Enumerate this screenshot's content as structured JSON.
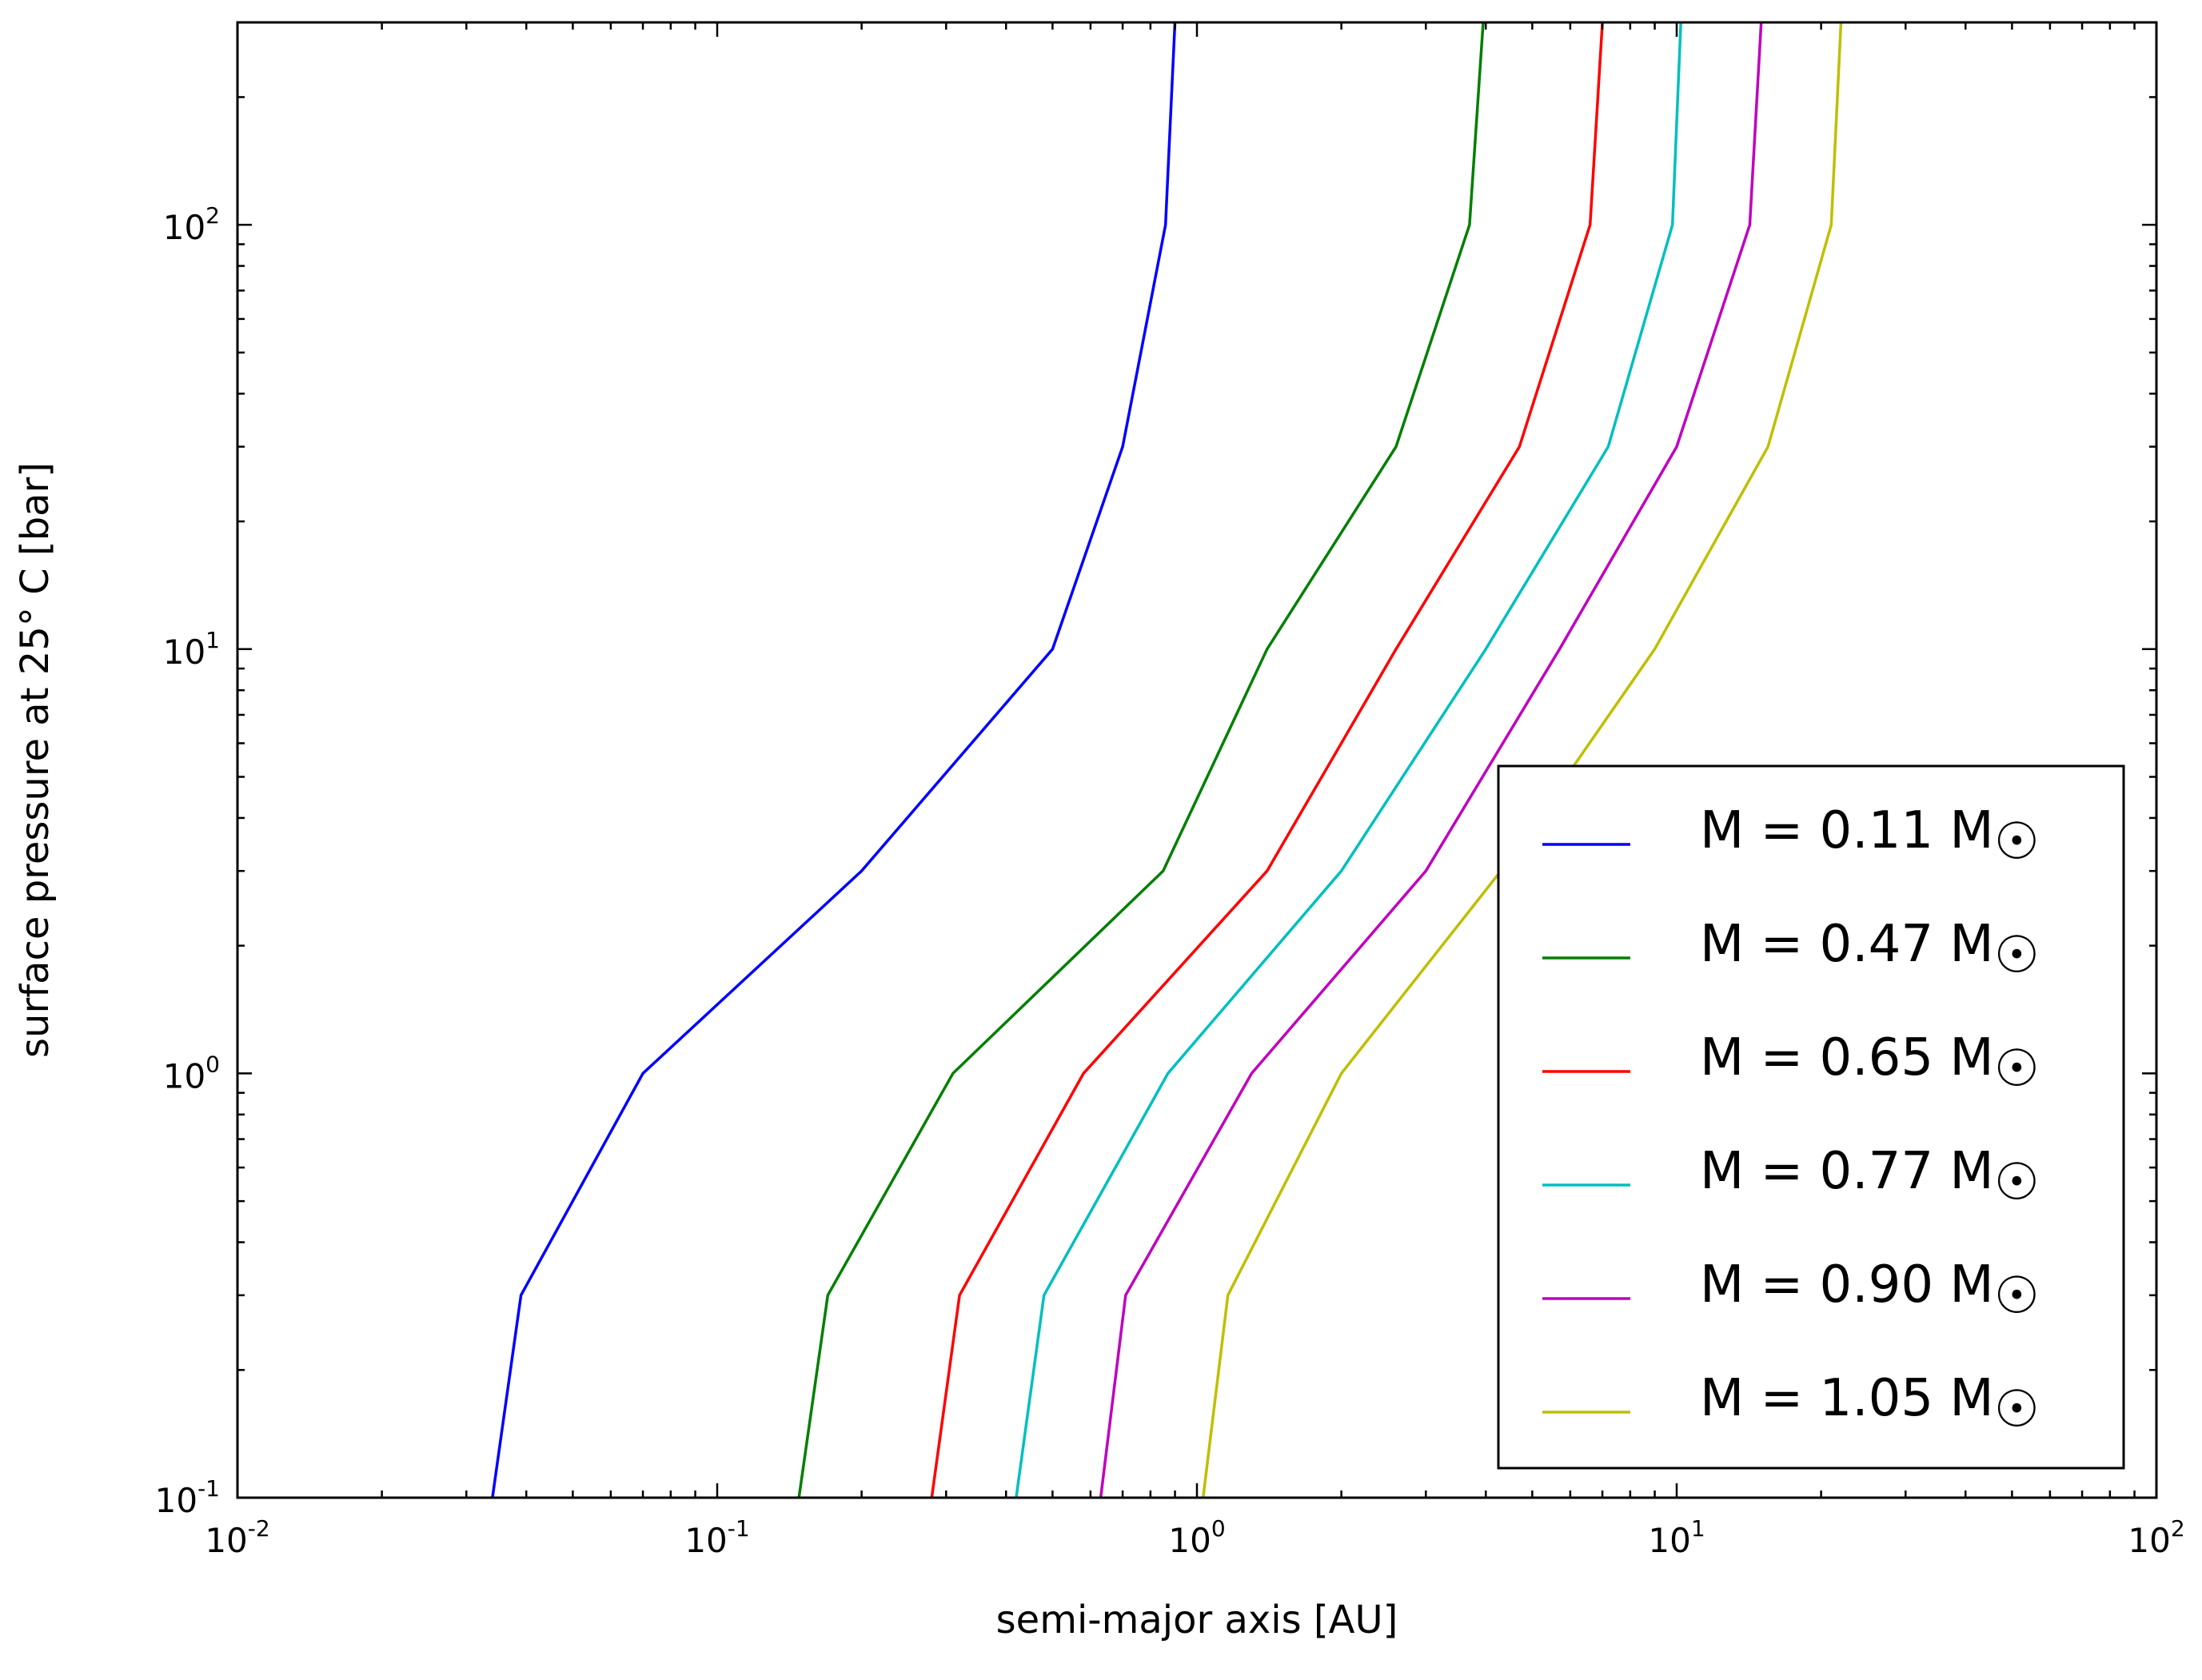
{
  "chart_data": {
    "type": "line",
    "title": "",
    "xlabel": "semi-major axis [AU]",
    "ylabel": "surface pressure at 25° C [bar]",
    "xscale": "log",
    "yscale": "log",
    "xlim": [
      0.01,
      100
    ],
    "ylim": [
      0.1,
      300
    ],
    "x_ticks": [
      {
        "value": 0.01,
        "base": "10",
        "exp": "-2"
      },
      {
        "value": 0.1,
        "base": "10",
        "exp": "-1"
      },
      {
        "value": 1,
        "base": "10",
        "exp": "0"
      },
      {
        "value": 10,
        "base": "10",
        "exp": "1"
      },
      {
        "value": 100,
        "base": "10",
        "exp": "2"
      }
    ],
    "y_ticks": [
      {
        "value": 0.1,
        "base": "10",
        "exp": "-1"
      },
      {
        "value": 1,
        "base": "10",
        "exp": "0"
      },
      {
        "value": 10,
        "base": "10",
        "exp": "1"
      },
      {
        "value": 100,
        "base": "10",
        "exp": "2"
      }
    ],
    "grid": false,
    "legend_position": "lower-right",
    "series": [
      {
        "name": "M = 0.11 M☉",
        "label_main": "M = 0.11 M",
        "label_sub": "☉",
        "color": "#0000ff",
        "points": [
          [
            0.034,
            0.1
          ],
          [
            0.039,
            0.3
          ],
          [
            0.07,
            1
          ],
          [
            0.2,
            3
          ],
          [
            0.5,
            10
          ],
          [
            0.7,
            30
          ],
          [
            0.86,
            100
          ],
          [
            0.9,
            300
          ]
        ]
      },
      {
        "name": "M = 0.47 M☉",
        "label_main": "M = 0.47 M",
        "label_sub": "☉",
        "color": "#007f00",
        "points": [
          [
            0.148,
            0.1
          ],
          [
            0.17,
            0.3
          ],
          [
            0.31,
            1
          ],
          [
            0.85,
            3
          ],
          [
            1.4,
            10
          ],
          [
            2.6,
            30
          ],
          [
            3.7,
            100
          ],
          [
            3.95,
            300
          ]
        ]
      },
      {
        "name": "M = 0.65 M☉",
        "label_main": "M = 0.65 M",
        "label_sub": "☉",
        "color": "#ff0000",
        "points": [
          [
            0.28,
            0.1
          ],
          [
            0.32,
            0.3
          ],
          [
            0.58,
            1
          ],
          [
            1.4,
            3
          ],
          [
            2.6,
            10
          ],
          [
            4.7,
            30
          ],
          [
            6.6,
            100
          ],
          [
            7.0,
            300
          ]
        ]
      },
      {
        "name": "M = 0.77 M☉",
        "label_main": "M = 0.77 M",
        "label_sub": "☉",
        "color": "#00bfbf",
        "points": [
          [
            0.42,
            0.1
          ],
          [
            0.48,
            0.3
          ],
          [
            0.87,
            1
          ],
          [
            2.0,
            3
          ],
          [
            4.0,
            10
          ],
          [
            7.2,
            30
          ],
          [
            9.8,
            100
          ],
          [
            10.2,
            300
          ]
        ]
      },
      {
        "name": "M = 0.90 M☉",
        "label_main": "M = 0.90 M",
        "label_sub": "☉",
        "color": "#bf00bf",
        "points": [
          [
            0.63,
            0.1
          ],
          [
            0.71,
            0.3
          ],
          [
            1.3,
            1
          ],
          [
            3.0,
            3
          ],
          [
            5.7,
            10
          ],
          [
            10.0,
            30
          ],
          [
            14.2,
            100
          ],
          [
            15.0,
            300
          ]
        ]
      },
      {
        "name": "M = 1.05 M☉",
        "label_main": "M = 1.05 M",
        "label_sub": "☉",
        "color": "#bfbf00",
        "points": [
          [
            1.03,
            0.1
          ],
          [
            1.16,
            0.3
          ],
          [
            2.0,
            1
          ],
          [
            4.3,
            3
          ],
          [
            9.0,
            10
          ],
          [
            15.5,
            30
          ],
          [
            21.0,
            100
          ],
          [
            22.0,
            300
          ]
        ]
      }
    ]
  }
}
